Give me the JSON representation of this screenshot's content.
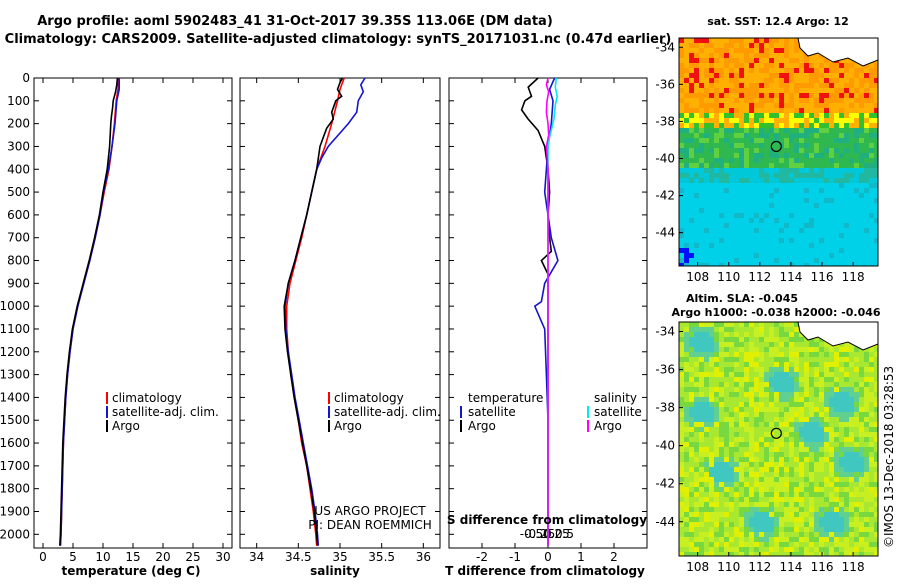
{
  "header": {
    "line1": "Argo profile: aoml 5902483_41 31-Oct-2017 39.35S 113.06E (DM data)",
    "line2": "Climatology: CARS2009. Satellite-adjusted climatology: synTS_20171031.nc (0.47d earlier)"
  },
  "colors": {
    "climatology": "#ff0000",
    "satellite": "#1515d0",
    "argo": "#000000",
    "cyan": "#00e8f0",
    "magenta": "#ff00ff"
  },
  "chart_data": [
    {
      "type": "line",
      "name": "temperature",
      "xlabel": "temperature (deg C)",
      "ylabel": "depth",
      "xlim": [
        -1.5,
        31.5
      ],
      "ylim": [
        2060,
        0
      ],
      "xticks": [
        0,
        5,
        10,
        15,
        20,
        25,
        30
      ],
      "xtick_labels": [
        "0",
        "5",
        "10",
        "15",
        "20",
        "25",
        "30"
      ],
      "yticks": [
        0,
        100,
        200,
        300,
        400,
        500,
        600,
        700,
        800,
        900,
        1000,
        1100,
        1200,
        1300,
        1400,
        1500,
        1600,
        1700,
        1800,
        1900,
        2000
      ],
      "ytick_labels": [
        "0",
        "100",
        "200",
        "300",
        "400",
        "500",
        "600",
        "700",
        "800",
        "900",
        "1000",
        "1100",
        "1200",
        "1300",
        "1400",
        "1500",
        "1600",
        "1700",
        "1800",
        "1900",
        "2000"
      ],
      "legend": [
        "climatology",
        "satellite-adj. clim.",
        "Argo"
      ],
      "series": [
        {
          "name": "climatology",
          "color": "#ff0000",
          "points": [
            [
              12.6,
              0
            ],
            [
              12.5,
              50
            ],
            [
              12.2,
              100
            ],
            [
              11.9,
              200
            ],
            [
              11.5,
              300
            ],
            [
              11.0,
              400
            ],
            [
              10.2,
              500
            ],
            [
              9.5,
              600
            ],
            [
              8.7,
              700
            ],
            [
              7.8,
              800
            ],
            [
              6.8,
              900
            ],
            [
              5.8,
              1000
            ],
            [
              5.0,
              1100
            ],
            [
              4.5,
              1200
            ],
            [
              4.1,
              1300
            ],
            [
              3.8,
              1400
            ],
            [
              3.6,
              1500
            ],
            [
              3.4,
              1600
            ],
            [
              3.2,
              1800
            ],
            [
              3.0,
              2000
            ],
            [
              2.9,
              2050
            ]
          ]
        },
        {
          "name": "satellite-adj. clim.",
          "color": "#1515d0",
          "points": [
            [
              12.7,
              0
            ],
            [
              12.7,
              50
            ],
            [
              12.3,
              100
            ],
            [
              12.0,
              200
            ],
            [
              11.5,
              300
            ],
            [
              10.9,
              400
            ],
            [
              10.1,
              500
            ],
            [
              9.5,
              600
            ],
            [
              8.7,
              700
            ],
            [
              7.8,
              800
            ],
            [
              6.8,
              900
            ],
            [
              5.8,
              1000
            ],
            [
              5.0,
              1100
            ],
            [
              4.5,
              1200
            ],
            [
              4.1,
              1300
            ],
            [
              3.8,
              1400
            ],
            [
              3.6,
              1500
            ],
            [
              3.4,
              1600
            ],
            [
              3.2,
              1800
            ],
            [
              3.0,
              2000
            ],
            [
              2.9,
              2050
            ]
          ]
        },
        {
          "name": "Argo",
          "color": "#000000",
          "points": [
            [
              12.4,
              0
            ],
            [
              12.3,
              30
            ],
            [
              12.1,
              60
            ],
            [
              11.7,
              100
            ],
            [
              11.6,
              130
            ],
            [
              11.4,
              170
            ],
            [
              11.3,
              200
            ],
            [
              11.2,
              250
            ],
            [
              11.1,
              300
            ],
            [
              10.7,
              400
            ],
            [
              10.0,
              500
            ],
            [
              9.4,
              600
            ],
            [
              8.6,
              700
            ],
            [
              7.7,
              800
            ],
            [
              6.7,
              900
            ],
            [
              5.7,
              1000
            ],
            [
              4.9,
              1100
            ],
            [
              4.4,
              1200
            ],
            [
              4.0,
              1300
            ],
            [
              3.7,
              1400
            ],
            [
              3.5,
              1500
            ],
            [
              3.3,
              1600
            ],
            [
              3.1,
              1800
            ],
            [
              2.9,
              2000
            ],
            [
              2.8,
              2050
            ]
          ]
        }
      ]
    },
    {
      "type": "line",
      "name": "salinity",
      "xlabel": "salinity",
      "xlim": [
        33.8,
        36.2
      ],
      "ylim": [
        2060,
        0
      ],
      "xticks": [
        34,
        34.5,
        35,
        35.5,
        36
      ],
      "xtick_labels": [
        "34",
        "34.5",
        "35",
        "35.5",
        "36"
      ],
      "legend": [
        "climatology",
        "satellite-adj. clim.",
        "Argo"
      ],
      "credit1": "US ARGO PROJECT",
      "credit2": "PI: DEAN ROEMMICH",
      "series": [
        {
          "name": "climatology",
          "color": "#ff0000",
          "points": [
            [
              35.05,
              0
            ],
            [
              35.0,
              50
            ],
            [
              34.97,
              100
            ],
            [
              34.9,
              200
            ],
            [
              34.82,
              300
            ],
            [
              34.72,
              400
            ],
            [
              34.66,
              500
            ],
            [
              34.6,
              600
            ],
            [
              34.54,
              700
            ],
            [
              34.47,
              800
            ],
            [
              34.4,
              900
            ],
            [
              34.36,
              1000
            ],
            [
              34.36,
              1100
            ],
            [
              34.38,
              1200
            ],
            [
              34.41,
              1300
            ],
            [
              34.45,
              1400
            ],
            [
              34.5,
              1500
            ],
            [
              34.54,
              1600
            ],
            [
              34.6,
              1700
            ],
            [
              34.64,
              1800
            ],
            [
              34.68,
              1900
            ],
            [
              34.71,
              2000
            ],
            [
              34.72,
              2050
            ]
          ]
        },
        {
          "name": "satellite-adj. clim.",
          "color": "#1515d0",
          "points": [
            [
              35.3,
              0
            ],
            [
              35.25,
              30
            ],
            [
              35.28,
              60
            ],
            [
              35.22,
              100
            ],
            [
              35.2,
              150
            ],
            [
              35.1,
              200
            ],
            [
              34.98,
              250
            ],
            [
              34.86,
              300
            ],
            [
              34.78,
              350
            ],
            [
              34.72,
              400
            ],
            [
              34.66,
              500
            ],
            [
              34.6,
              600
            ],
            [
              34.53,
              700
            ],
            [
              34.46,
              800
            ],
            [
              34.38,
              900
            ],
            [
              34.34,
              1000
            ],
            [
              34.35,
              1100
            ],
            [
              34.38,
              1200
            ],
            [
              34.42,
              1300
            ],
            [
              34.46,
              1400
            ],
            [
              34.51,
              1500
            ],
            [
              34.56,
              1600
            ],
            [
              34.61,
              1700
            ],
            [
              34.66,
              1800
            ],
            [
              34.7,
              1900
            ],
            [
              34.73,
              2000
            ],
            [
              34.74,
              2050
            ]
          ]
        },
        {
          "name": "Argo",
          "color": "#000000",
          "points": [
            [
              35.03,
              0
            ],
            [
              35.0,
              20
            ],
            [
              34.97,
              50
            ],
            [
              35.02,
              80
            ],
            [
              34.95,
              100
            ],
            [
              34.9,
              150
            ],
            [
              34.92,
              180
            ],
            [
              34.84,
              220
            ],
            [
              34.8,
              260
            ],
            [
              34.76,
              300
            ],
            [
              34.72,
              400
            ],
            [
              34.66,
              500
            ],
            [
              34.6,
              600
            ],
            [
              34.53,
              700
            ],
            [
              34.46,
              800
            ],
            [
              34.38,
              900
            ],
            [
              34.33,
              1000
            ],
            [
              34.34,
              1100
            ],
            [
              34.37,
              1200
            ],
            [
              34.41,
              1300
            ],
            [
              34.45,
              1400
            ],
            [
              34.5,
              1500
            ],
            [
              34.55,
              1600
            ],
            [
              34.6,
              1700
            ],
            [
              34.65,
              1800
            ],
            [
              34.69,
              1900
            ],
            [
              34.72,
              2000
            ],
            [
              34.73,
              2050
            ]
          ]
        }
      ]
    },
    {
      "type": "line",
      "name": "differences",
      "xlabel": "T difference from climatology",
      "xlabel2": "S difference from climatology",
      "xlim": [
        -3,
        3
      ],
      "ylim": [
        2060,
        0
      ],
      "xticks": [
        -2,
        -1,
        0,
        1,
        2
      ],
      "xtick_labels": [
        "-2",
        "-1",
        "0",
        "1",
        "2"
      ],
      "s_xticks": [
        -0.5,
        -0.25,
        0,
        0.25,
        0.5
      ],
      "s_xtick_labels": [
        "-0.5",
        "-0.25",
        "0",
        "0.25",
        "0.5"
      ],
      "legend_t_header": "temperature",
      "legend_s_header": "salinity",
      "legend_satellite": "satellite",
      "legend_argo": "Argo",
      "series": [
        {
          "name": "T Argo-clim",
          "color": "#000000",
          "points": [
            [
              -0.3,
              0
            ],
            [
              -0.6,
              40
            ],
            [
              -0.5,
              80
            ],
            [
              -0.7,
              100
            ],
            [
              -0.8,
              140
            ],
            [
              -0.6,
              180
            ],
            [
              -0.3,
              230
            ],
            [
              -0.1,
              300
            ],
            [
              0.0,
              400
            ],
            [
              0.05,
              500
            ],
            [
              0.0,
              600
            ],
            [
              0.05,
              700
            ],
            [
              0.1,
              760
            ],
            [
              -0.2,
              800
            ],
            [
              0.0,
              860
            ],
            [
              0.0,
              1000
            ],
            [
              0.0,
              1500
            ],
            [
              0.0,
              2050
            ]
          ]
        },
        {
          "name": "T satellite-clim",
          "color": "#1515d0",
          "points": [
            [
              0.2,
              0
            ],
            [
              0.05,
              50
            ],
            [
              0.15,
              100
            ],
            [
              0.1,
              200
            ],
            [
              0.0,
              300
            ],
            [
              -0.05,
              400
            ],
            [
              -0.1,
              500
            ],
            [
              0.0,
              600
            ],
            [
              0.1,
              700
            ],
            [
              0.3,
              800
            ],
            [
              -0.1,
              900
            ],
            [
              -0.2,
              980
            ],
            [
              -0.4,
              1000
            ],
            [
              -0.1,
              1100
            ],
            [
              -0.05,
              1300
            ],
            [
              0.0,
              1500
            ],
            [
              0.0,
              2050
            ]
          ]
        },
        {
          "name": "S satellite-clim",
          "color": "#00e8f0",
          "points": [
            [
              0.25,
              0
            ],
            [
              0.22,
              40
            ],
            [
              0.28,
              80
            ],
            [
              0.22,
              120
            ],
            [
              0.18,
              180
            ],
            [
              0.05,
              260
            ],
            [
              0.0,
              300
            ],
            [
              0.0,
              600
            ],
            [
              0.0,
              800
            ],
            [
              0.0,
              1000
            ],
            [
              0.0,
              1500
            ],
            [
              0.0,
              2050
            ]
          ]
        },
        {
          "name": "S Argo-clim",
          "color": "#ff00ff",
          "points": [
            [
              0.0,
              0
            ],
            [
              -0.05,
              30
            ],
            [
              0.02,
              60
            ],
            [
              -0.03,
              100
            ],
            [
              -0.05,
              150
            ],
            [
              0.0,
              200
            ],
            [
              0.02,
              250
            ],
            [
              -0.05,
              300
            ],
            [
              0.0,
              400
            ],
            [
              0.0,
              600
            ],
            [
              0.0,
              1000
            ],
            [
              0.0,
              1500
            ],
            [
              0.0,
              2050
            ]
          ]
        }
      ]
    },
    {
      "type": "heatmap",
      "name": "sst-map",
      "title": "sat. SST: 12.4 Argo: 12",
      "xlim": [
        106.8,
        119.6
      ],
      "ylim": [
        -45.8,
        -33.5
      ],
      "xticks": [
        108,
        110,
        112,
        114,
        116,
        118
      ],
      "xtick_labels": [
        "108",
        "110",
        "112",
        "114",
        "116",
        "118"
      ],
      "yticks": [
        -34,
        -36,
        -38,
        -40,
        -42,
        -44
      ],
      "ytick_labels": [
        "-34",
        "-36",
        "-38",
        "-40",
        "-42",
        "-44"
      ],
      "marker": [
        113.06,
        -39.35
      ]
    },
    {
      "type": "heatmap",
      "name": "sla-map",
      "title": "Altim. SLA: -0.045",
      "subtitle": "Argo h1000: -0.038 h2000: -0.046",
      "xlim": [
        106.8,
        119.6
      ],
      "ylim": [
        -45.8,
        -33.5
      ],
      "xticks": [
        108,
        110,
        112,
        114,
        116,
        118
      ],
      "xtick_labels": [
        "108",
        "110",
        "112",
        "114",
        "116",
        "118"
      ],
      "yticks": [
        -34,
        -36,
        -38,
        -40,
        -42,
        -44
      ],
      "ytick_labels": [
        "-34",
        "-36",
        "-38",
        "-40",
        "-42",
        "-44"
      ],
      "marker": [
        113.06,
        -39.35
      ]
    }
  ],
  "footer": {
    "imos": "©IMOS 13-Dec-2018 03:28:53"
  }
}
